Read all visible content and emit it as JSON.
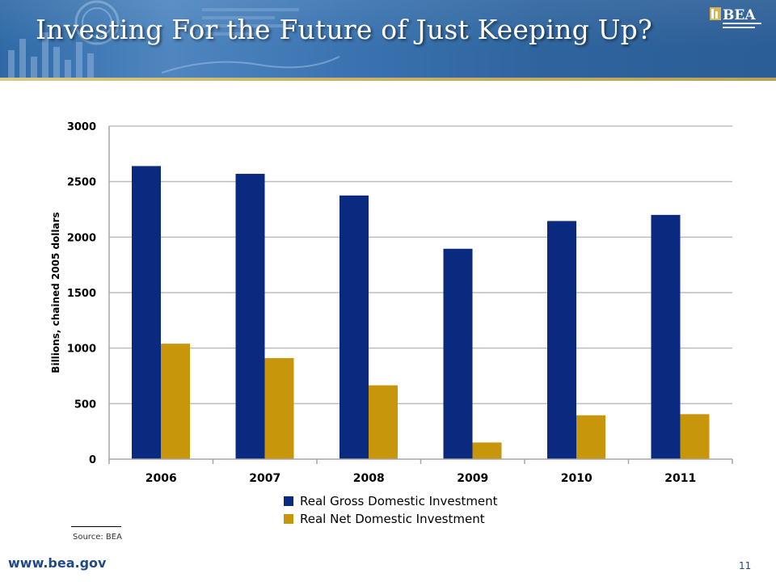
{
  "slide": {
    "title": "Investing For the Future of Just Keeping Up?",
    "source": "Source: BEA",
    "website": "www.bea.gov",
    "page_number": "11",
    "logo_text": "BEA"
  },
  "colors": {
    "gross": "#0a2a80",
    "net": "#c8960a",
    "grid": "#bdbdbd",
    "banner": "#2f6aa6"
  },
  "chart_data": {
    "type": "bar",
    "categories": [
      "2006",
      "2007",
      "2008",
      "2009",
      "2010",
      "2011"
    ],
    "series": [
      {
        "name": "Real Gross Domestic Investment",
        "values": [
          2640,
          2570,
          2375,
          1895,
          2145,
          2200
        ]
      },
      {
        "name": "Real Net Domestic Investment",
        "values": [
          1040,
          910,
          665,
          150,
          395,
          405
        ]
      }
    ],
    "ylabel": "Billions, chained 2005 dollars",
    "ylim": [
      0,
      3000
    ],
    "yticks": [
      0,
      500,
      1000,
      1500,
      2000,
      2500,
      3000
    ],
    "grid": true,
    "legend": "bottom"
  }
}
